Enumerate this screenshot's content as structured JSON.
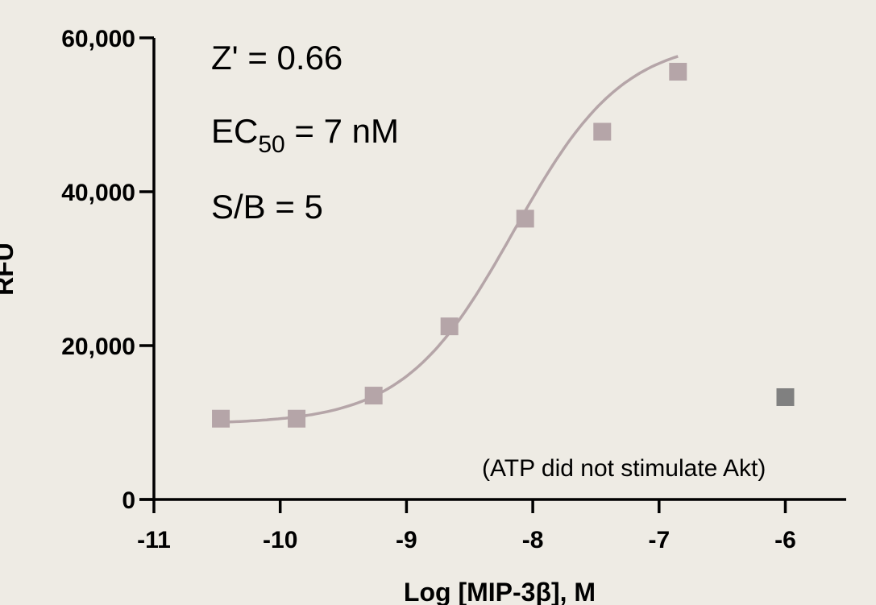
{
  "chart_data": {
    "type": "scatter",
    "xlabel": "Log [MIP-3β], M",
    "ylabel": "RFU",
    "xlim": [
      -11,
      -5.5
    ],
    "ylim": [
      0,
      60000
    ],
    "x_ticks": [
      -11,
      -10,
      -9,
      -8,
      -7,
      -6
    ],
    "x_tick_labels": [
      "-11",
      "-10",
      "-9",
      "-8",
      "-7",
      "-6"
    ],
    "y_ticks": [
      0,
      20000,
      40000,
      60000
    ],
    "y_tick_labels": [
      "0",
      "20,000",
      "40,000",
      "60,000"
    ],
    "grid": false,
    "series": [
      {
        "points": [
          {
            "x": -10.47,
            "y": 10500
          },
          {
            "x": -9.87,
            "y": 10500
          },
          {
            "x": -9.26,
            "y": 13500
          },
          {
            "x": -8.66,
            "y": 22500
          },
          {
            "x": -8.06,
            "y": 36500
          },
          {
            "x": -7.45,
            "y": 47800
          },
          {
            "x": -6.85,
            "y": 55600
          }
        ],
        "color": "#b5a5a8",
        "fit": {
          "model": "four-parameter logistic",
          "bottom": 9800,
          "top": 60000,
          "log_ec50": -8.15,
          "hill": 1.0,
          "x_range": [
            -10.47,
            -6.85
          ]
        }
      },
      {
        "points": [
          {
            "x": -6.0,
            "y": 13300
          }
        ],
        "color": "#808080"
      }
    ],
    "annotations": {
      "z_prime": "Z' = 0.66",
      "ec50_prefix": "EC",
      "ec50_subscript": "50",
      "ec50_suffix": " = 7 nM",
      "sb": "S/B = 5",
      "atp_note": "(ATP did not stimulate Akt)"
    }
  }
}
